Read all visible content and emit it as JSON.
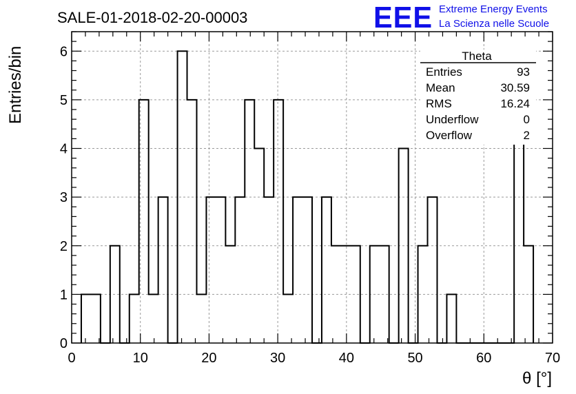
{
  "chart_data": {
    "type": "histogram",
    "title": "SALE-01-2018-02-20-00003",
    "xlabel": "θ [°]",
    "ylabel": "Entries/bin",
    "xlim": [
      0,
      70
    ],
    "ylim": [
      0,
      6.4
    ],
    "grid": true,
    "bin_width": 1.4,
    "x_ticks": [
      "0",
      "10",
      "20",
      "30",
      "40",
      "50",
      "60",
      "70"
    ],
    "y_ticks": [
      "0",
      "1",
      "2",
      "3",
      "4",
      "5",
      "6"
    ],
    "bins": [
      {
        "x": 1.4,
        "y": 1
      },
      {
        "x": 2.8,
        "y": 1
      },
      {
        "x": 4.2,
        "y": 0
      },
      {
        "x": 5.6,
        "y": 2
      },
      {
        "x": 7.0,
        "y": 0
      },
      {
        "x": 8.4,
        "y": 1
      },
      {
        "x": 9.8,
        "y": 5
      },
      {
        "x": 11.2,
        "y": 1
      },
      {
        "x": 12.6,
        "y": 3
      },
      {
        "x": 14.0,
        "y": 0
      },
      {
        "x": 15.4,
        "y": 6
      },
      {
        "x": 16.8,
        "y": 5
      },
      {
        "x": 18.2,
        "y": 1
      },
      {
        "x": 19.6,
        "y": 3
      },
      {
        "x": 21.0,
        "y": 3
      },
      {
        "x": 22.4,
        "y": 2
      },
      {
        "x": 23.8,
        "y": 3
      },
      {
        "x": 25.2,
        "y": 5
      },
      {
        "x": 26.6,
        "y": 4
      },
      {
        "x": 28.0,
        "y": 3
      },
      {
        "x": 29.4,
        "y": 5
      },
      {
        "x": 30.8,
        "y": 1
      },
      {
        "x": 32.2,
        "y": 3
      },
      {
        "x": 33.6,
        "y": 3
      },
      {
        "x": 35.0,
        "y": 0
      },
      {
        "x": 36.4,
        "y": 3
      },
      {
        "x": 37.8,
        "y": 2
      },
      {
        "x": 39.2,
        "y": 2
      },
      {
        "x": 40.6,
        "y": 2
      },
      {
        "x": 42.0,
        "y": 0
      },
      {
        "x": 43.4,
        "y": 2
      },
      {
        "x": 44.8,
        "y": 2
      },
      {
        "x": 46.2,
        "y": 0
      },
      {
        "x": 47.6,
        "y": 4
      },
      {
        "x": 49.0,
        "y": 0
      },
      {
        "x": 50.4,
        "y": 2
      },
      {
        "x": 51.8,
        "y": 3
      },
      {
        "x": 53.2,
        "y": 0
      },
      {
        "x": 54.6,
        "y": 1
      },
      {
        "x": 56.0,
        "y": 0
      },
      {
        "x": 57.4,
        "y": 0
      },
      {
        "x": 58.8,
        "y": 0
      },
      {
        "x": 60.2,
        "y": 0
      },
      {
        "x": 61.6,
        "y": 0
      },
      {
        "x": 63.0,
        "y": 0
      },
      {
        "x": 64.4,
        "y": 5
      },
      {
        "x": 65.8,
        "y": 2
      }
    ],
    "stats_box": {
      "title": "Theta",
      "rows": [
        {
          "label": "Entries",
          "value": "93"
        },
        {
          "label": "Mean",
          "value": "30.59"
        },
        {
          "label": "RMS",
          "value": "16.24"
        },
        {
          "label": "Underflow",
          "value": "0"
        },
        {
          "label": "Overflow",
          "value": "2"
        }
      ]
    },
    "colors": {
      "line": "#000000",
      "grid": "#999999",
      "brand": "#1010e8"
    }
  },
  "brand": {
    "logo": "EEE",
    "line1": "Extreme Energy Events",
    "line2": "La Scienza nelle Scuole"
  }
}
